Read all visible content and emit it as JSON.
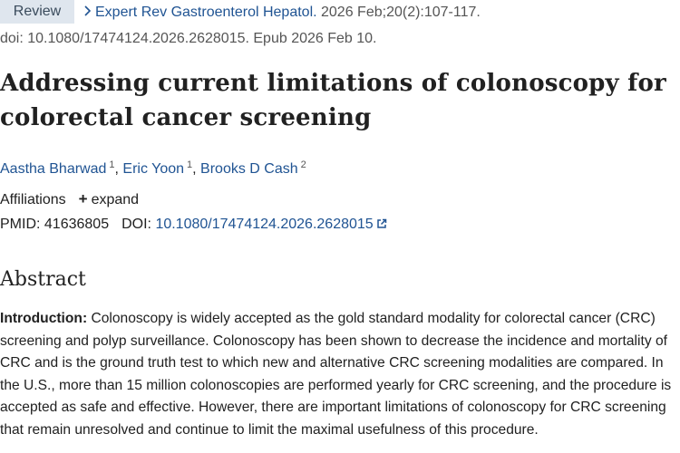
{
  "header": {
    "badge": "Review",
    "journal": "Expert Rev Gastroenterol Hepatol.",
    "citation": " 2026 Feb;20(2):107-117.",
    "doi_epub": "doi: 10.1080/17474124.2026.2628015. Epub 2026 Feb 10."
  },
  "article": {
    "title": "Addressing current limitations of colonoscopy for colorectal cancer screening"
  },
  "authors": [
    {
      "name": "Aastha Bharwad",
      "sup": "1"
    },
    {
      "name": "Eric Yoon",
      "sup": "1"
    },
    {
      "name": "Brooks D Cash",
      "sup": "2"
    }
  ],
  "affiliations": {
    "label": "Affiliations",
    "expand": "expand"
  },
  "ids": {
    "pmid_label": "PMID:",
    "pmid": "41636805",
    "doi_label": "DOI:",
    "doi": "10.1080/17474124.2026.2628015"
  },
  "abstract": {
    "heading": "Abstract",
    "intro_label": "Introduction:",
    "intro_text": " Colonoscopy is widely accepted as the gold standard modality for colorectal cancer (CRC) screening and polyp surveillance. Colonoscopy has been shown to decrease the incidence and mortality of CRC and is the ground truth test to which new and alternative CRC screening modalities are compared. In the U.S., more than 15 million colonoscopies are performed yearly for CRC screening, and the procedure is accepted as safe and effective. However, there are important limitations of colonoscopy for CRC screening that remain unresolved and continue to limit the maximal usefulness of this procedure."
  },
  "colors": {
    "link": "#205493",
    "badge_bg": "#dfe6ee"
  }
}
